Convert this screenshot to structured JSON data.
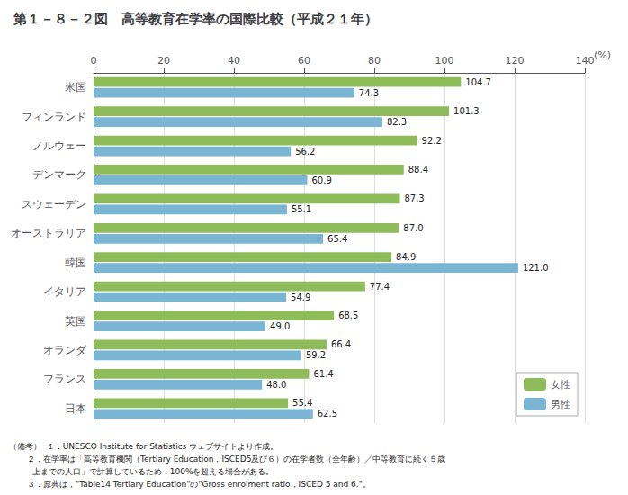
{
  "chart_data": {
    "type": "bar",
    "orientation": "horizontal",
    "title": "第１－８－２図　高等教育在学率の国際比較（平成２１年）",
    "xlabel": "(%)",
    "categories": [
      "米国",
      "フィンランド",
      "ノルウェー",
      "デンマーク",
      "スウェーデン",
      "オーストラリア",
      "韓国",
      "イタリア",
      "英国",
      "オランダ",
      "フランス",
      "日本"
    ],
    "series": [
      {
        "name": "女性",
        "color": "#8fbc5a",
        "values": [
          104.7,
          101.3,
          92.2,
          88.4,
          87.3,
          87.0,
          84.9,
          77.4,
          68.5,
          66.4,
          61.4,
          55.4
        ],
        "value_labels": [
          "104.7",
          "101.3",
          "92.2",
          "88.4",
          "87.3",
          "87.0",
          "84.9",
          "77.4",
          "68.5",
          "66.4",
          "61.4",
          "55.4"
        ]
      },
      {
        "name": "男性",
        "color": "#7ab6d4",
        "values": [
          74.3,
          82.3,
          56.2,
          60.9,
          55.1,
          65.4,
          121.0,
          54.9,
          49.0,
          59.2,
          48.0,
          62.5
        ],
        "value_labels": [
          "74.3",
          "82.3",
          "56.2",
          "60.9",
          "55.1",
          "65.4",
          "121.0",
          "54.9",
          "49.0",
          "59.2",
          "48.0",
          "62.5"
        ]
      }
    ],
    "xlim": [
      0,
      140
    ],
    "xticks": [
      0,
      20,
      40,
      60,
      80,
      100,
      120,
      140
    ],
    "grid": true,
    "legend": "lower right",
    "data_labels": true,
    "annotations": [
      "（備考）  １．UNESCO Institute for Statistics ウェブサイトより作成。",
      "       ２．在学率は「高等教育機関（Tertiary Education，ISCED5及び６）の在学者数（全年齢）／中等教育に続く５歳",
      "         上までの人口」で計算しているため，100%を超える場合がある。",
      "       ３．原典は，\"Table14 Tertiary Education\"の\"Gross enrolment ratio，ISCED 5 and 6.\"。"
    ]
  }
}
